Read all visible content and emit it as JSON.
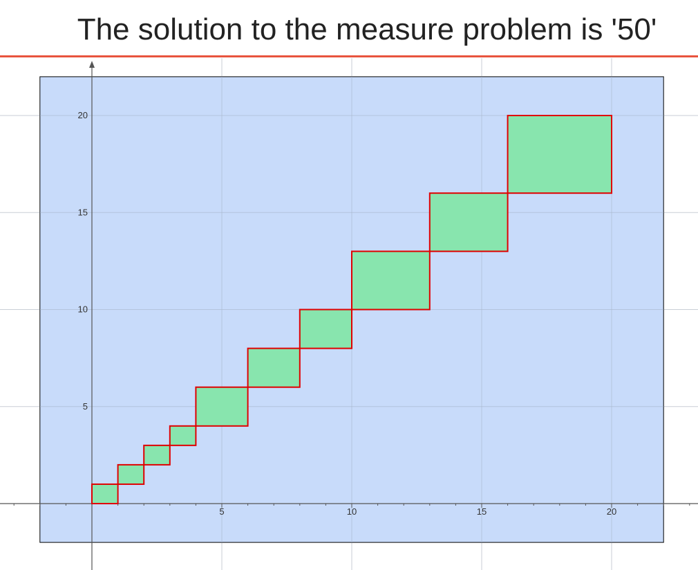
{
  "title": "The solution to the measure problem is '50'",
  "colors": {
    "title_rule": "#e8543e",
    "region_fill": "#c5d9fa",
    "square_fill": "#88e5ae",
    "square_stroke": "#e00000",
    "grid": "#c9ced6",
    "axis": "#555555"
  },
  "chart_data": {
    "type": "area",
    "title": "The solution to the measure problem is '50'",
    "xlabel": "",
    "ylabel": "",
    "xlim": [
      -3.5,
      23
    ],
    "ylim": [
      -3.5,
      22.5
    ],
    "grid": true,
    "x_ticks": [
      5,
      10,
      15,
      20
    ],
    "y_ticks": [
      5,
      10,
      15,
      20
    ],
    "region": {
      "x": [
        -2,
        22
      ],
      "y": [
        -2,
        22
      ]
    },
    "rectangles": [
      {
        "x": [
          0,
          1
        ],
        "y": [
          0,
          1
        ]
      },
      {
        "x": [
          1,
          2
        ],
        "y": [
          1,
          2
        ]
      },
      {
        "x": [
          2,
          3
        ],
        "y": [
          2,
          3
        ]
      },
      {
        "x": [
          3,
          4
        ],
        "y": [
          3,
          4
        ]
      },
      {
        "x": [
          4,
          6
        ],
        "y": [
          4,
          6
        ]
      },
      {
        "x": [
          6,
          8
        ],
        "y": [
          6,
          8
        ]
      },
      {
        "x": [
          8,
          10
        ],
        "y": [
          8,
          10
        ]
      },
      {
        "x": [
          10,
          13
        ],
        "y": [
          10,
          13
        ]
      },
      {
        "x": [
          13,
          16
        ],
        "y": [
          13,
          16
        ]
      },
      {
        "x": [
          16,
          20
        ],
        "y": [
          16,
          20
        ]
      }
    ]
  }
}
